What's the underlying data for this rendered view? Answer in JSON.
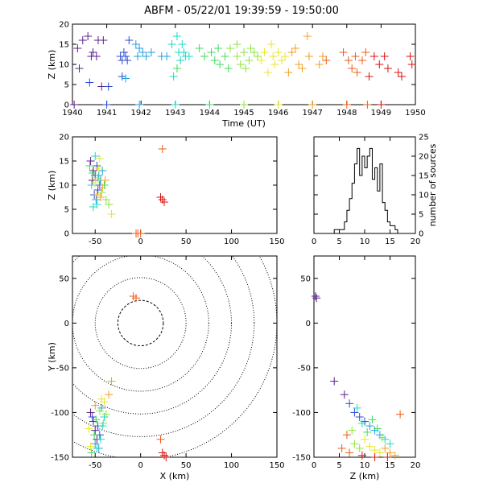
{
  "title": "ABFM - 05/22/01 19:39:59 - 19:50:00",
  "colors": {
    "rainbow": [
      "#5a1d8c",
      "#2a4bd0",
      "#1fa0e0",
      "#19d8c8",
      "#3cdc5a",
      "#8ce63c",
      "#e8e628",
      "#f0a020",
      "#f05a14",
      "#d81010"
    ],
    "axis": "#000000"
  },
  "chart_data": [
    {
      "id": "time_height",
      "type": "scatter",
      "marker": "+",
      "xlabel": "Time (UT)",
      "ylabel": "Z (km)",
      "xlim": [
        1940,
        1950
      ],
      "ylim": [
        0,
        20
      ],
      "xticks": [
        "1940",
        "1941",
        "1942",
        "1943",
        "1944",
        "1945",
        "1946",
        "1947",
        "1948",
        "1949",
        "1950"
      ],
      "yticks": [
        "0",
        "5",
        "10",
        "15",
        "20"
      ],
      "points": [
        [
          1940.05,
          0
        ],
        [
          1940.15,
          14
        ],
        [
          1940.2,
          9
        ],
        [
          1940.3,
          16
        ],
        [
          1940.45,
          17
        ],
        [
          1940.55,
          12
        ],
        [
          1940.6,
          13
        ],
        [
          1940.7,
          12
        ],
        [
          1940.75,
          16
        ],
        [
          1940.9,
          16
        ],
        [
          1940.85,
          4.5
        ],
        [
          1941.0,
          0
        ],
        [
          1941.05,
          4.5
        ],
        [
          1940.5,
          5.5
        ],
        [
          1941.4,
          12
        ],
        [
          1941.45,
          11
        ],
        [
          1941.5,
          13
        ],
        [
          1941.55,
          12
        ],
        [
          1941.6,
          11
        ],
        [
          1941.65,
          16
        ],
        [
          1941.45,
          7
        ],
        [
          1941.55,
          6.5
        ],
        [
          1941.95,
          0
        ],
        [
          1941.85,
          15
        ],
        [
          1941.9,
          12
        ],
        [
          1941.95,
          14
        ],
        [
          1942.05,
          13
        ],
        [
          1942.15,
          12
        ],
        [
          1942.3,
          13
        ],
        [
          1942.6,
          12
        ],
        [
          1942.75,
          12
        ],
        [
          1942.9,
          15
        ],
        [
          1942.95,
          7
        ],
        [
          1943.0,
          0
        ],
        [
          1943.05,
          17
        ],
        [
          1943.1,
          13
        ],
        [
          1943.15,
          11
        ],
        [
          1943.2,
          15
        ],
        [
          1943.25,
          13
        ],
        [
          1943.3,
          12
        ],
        [
          1943.4,
          12
        ],
        [
          1943.05,
          9
        ],
        [
          1943.7,
          14
        ],
        [
          1943.85,
          12
        ],
        [
          1944.0,
          0
        ],
        [
          1944.05,
          13
        ],
        [
          1944.15,
          11
        ],
        [
          1944.25,
          14
        ],
        [
          1944.3,
          10
        ],
        [
          1944.45,
          12
        ],
        [
          1944.55,
          9
        ],
        [
          1944.6,
          14
        ],
        [
          1944.8,
          15
        ],
        [
          1944.8,
          12
        ],
        [
          1944.9,
          10
        ],
        [
          1945.0,
          0
        ],
        [
          1945.0,
          13
        ],
        [
          1945.05,
          9
        ],
        [
          1945.15,
          11
        ],
        [
          1945.2,
          14
        ],
        [
          1945.3,
          13
        ],
        [
          1945.4,
          12
        ],
        [
          1945.5,
          11
        ],
        [
          1945.6,
          13
        ],
        [
          1945.7,
          8
        ],
        [
          1945.8,
          15
        ],
        [
          1945.85,
          12
        ],
        [
          1945.9,
          10
        ],
        [
          1946.0,
          0
        ],
        [
          1946.0,
          13
        ],
        [
          1946.1,
          11
        ],
        [
          1946.2,
          12
        ],
        [
          1946.3,
          8
        ],
        [
          1946.4,
          13
        ],
        [
          1946.5,
          14
        ],
        [
          1946.6,
          10
        ],
        [
          1946.7,
          9
        ],
        [
          1946.85,
          17
        ],
        [
          1946.9,
          12
        ],
        [
          1947.0,
          0
        ],
        [
          1947.2,
          10
        ],
        [
          1947.3,
          12
        ],
        [
          1947.4,
          11
        ],
        [
          1947.9,
          13
        ],
        [
          1948.0,
          0
        ],
        [
          1948.05,
          11
        ],
        [
          1948.15,
          9
        ],
        [
          1948.25,
          12
        ],
        [
          1948.3,
          8
        ],
        [
          1948.45,
          11
        ],
        [
          1948.55,
          13
        ],
        [
          1948.6,
          0
        ],
        [
          1948.65,
          7
        ],
        [
          1948.8,
          12
        ],
        [
          1948.95,
          10
        ],
        [
          1949.0,
          0
        ],
        [
          1949.1,
          12
        ],
        [
          1949.2,
          9
        ],
        [
          1949.5,
          8
        ],
        [
          1949.6,
          7
        ],
        [
          1949.85,
          12
        ],
        [
          1949.9,
          10
        ]
      ]
    },
    {
      "id": "x_height",
      "type": "scatter",
      "marker": "+",
      "xlabel": "",
      "ylabel": "Z (km)",
      "xlim": [
        -75,
        150
      ],
      "ylim": [
        0,
        20
      ],
      "xticks": [
        "-50",
        "0",
        "50",
        "100",
        "150"
      ],
      "yticks": [
        "0",
        "5",
        "10",
        "15",
        "20"
      ],
      "points": [
        [
          -55,
          15
        ],
        [
          -52,
          13
        ],
        [
          -50,
          12
        ],
        [
          -53,
          11
        ],
        [
          -48,
          14
        ],
        [
          -45,
          10
        ],
        [
          -47,
          9
        ],
        [
          -51,
          8
        ],
        [
          -49,
          7
        ],
        [
          -44,
          11
        ],
        [
          -42,
          13
        ],
        [
          -46,
          12
        ],
        [
          -54,
          10
        ],
        [
          -50,
          16
        ],
        [
          -48,
          6
        ],
        [
          -52,
          5.5
        ],
        [
          -40,
          10
        ],
        [
          -56,
          14
        ],
        [
          -53,
          12.5
        ],
        [
          -47,
          11.5
        ],
        [
          -43,
          8.5
        ],
        [
          -38,
          7
        ],
        [
          -35,
          6
        ],
        [
          -32,
          4
        ],
        [
          -45,
          15.5
        ],
        [
          -50,
          10.5
        ],
        [
          -46,
          13.5
        ],
        [
          -42,
          9.5
        ],
        [
          -39,
          11
        ],
        [
          -48,
          8
        ],
        [
          -44,
          7.5
        ],
        [
          -5,
          0
        ],
        [
          -3,
          0
        ],
        [
          0,
          0
        ],
        [
          24,
          17.5
        ],
        [
          22,
          7.5
        ],
        [
          24,
          7
        ],
        [
          26,
          6.5
        ]
      ]
    },
    {
      "id": "altitude_histogram",
      "type": "bar",
      "xlabel": "",
      "ylabel": "number of sources",
      "xlim": [
        0,
        20
      ],
      "ylim": [
        0,
        25
      ],
      "xticks": [
        "0",
        "5",
        "10",
        "15",
        "20"
      ],
      "yticks": [
        "0",
        "5",
        "10",
        "15",
        "20",
        "25"
      ],
      "bins": [
        [
          4,
          1
        ],
        [
          5,
          1
        ],
        [
          6,
          3
        ],
        [
          6.5,
          6
        ],
        [
          7,
          9
        ],
        [
          7.5,
          13
        ],
        [
          8,
          18
        ],
        [
          8.5,
          22
        ],
        [
          9,
          15
        ],
        [
          9.5,
          20
        ],
        [
          10,
          17
        ],
        [
          10.5,
          20
        ],
        [
          11,
          22
        ],
        [
          11.5,
          14
        ],
        [
          12,
          17
        ],
        [
          12.5,
          11
        ],
        [
          13,
          18
        ],
        [
          13.5,
          8
        ],
        [
          14,
          6
        ],
        [
          14.5,
          3
        ],
        [
          15,
          2
        ],
        [
          16,
          1
        ]
      ]
    },
    {
      "id": "plan_view",
      "type": "scatter",
      "marker": "+",
      "xlabel": "X (km)",
      "ylabel": "Y (km)",
      "xlim": [
        -75,
        150
      ],
      "ylim": [
        -150,
        75
      ],
      "xticks": [
        "-50",
        "0",
        "50",
        "100",
        "150"
      ],
      "yticks": [
        "-150",
        "-100",
        "-50",
        "0",
        "50"
      ],
      "range_rings_km": [
        25,
        50,
        75,
        100,
        125,
        150
      ],
      "points": [
        [
          -55,
          -100
        ],
        [
          -52,
          -110
        ],
        [
          -50,
          -120
        ],
        [
          -48,
          -130
        ],
        [
          -45,
          -125
        ],
        [
          -47,
          -115
        ],
        [
          -53,
          -105
        ],
        [
          -50,
          -135
        ],
        [
          -46,
          -140
        ],
        [
          -43,
          -95
        ],
        [
          -40,
          -105
        ],
        [
          -42,
          -115
        ],
        [
          -44,
          -130
        ],
        [
          -48,
          -140
        ],
        [
          -54,
          -145
        ],
        [
          -51,
          -125
        ],
        [
          -49,
          -108
        ],
        [
          -45,
          -98
        ],
        [
          -41,
          -112
        ],
        [
          -38,
          -102
        ],
        [
          -55,
          -138
        ],
        [
          -57,
          -118
        ],
        [
          -43,
          -85
        ],
        [
          -40,
          -88
        ],
        [
          -35,
          -80
        ],
        [
          -32,
          -65
        ],
        [
          -50,
          -92
        ],
        [
          -8,
          30
        ],
        [
          -5,
          28
        ],
        [
          22,
          -130
        ],
        [
          24,
          -145
        ],
        [
          26,
          -148
        ],
        [
          28,
          -150
        ]
      ]
    },
    {
      "id": "z_y",
      "type": "scatter",
      "marker": "+",
      "xlabel": "Z (km)",
      "ylabel": "",
      "xlim": [
        0,
        20
      ],
      "ylim": [
        -150,
        75
      ],
      "xticks": [
        "0",
        "5",
        "10",
        "15",
        "20"
      ],
      "yticks": [
        "-150",
        "-100",
        "-50",
        "0",
        "50"
      ],
      "points": [
        [
          0.3,
          30
        ],
        [
          0.5,
          28
        ],
        [
          4,
          -65
        ],
        [
          6,
          -80
        ],
        [
          7,
          -90
        ],
        [
          8,
          -100
        ],
        [
          9,
          -105
        ],
        [
          10,
          -110
        ],
        [
          11,
          -115
        ],
        [
          12,
          -120
        ],
        [
          13,
          -125
        ],
        [
          14,
          -130
        ],
        [
          15,
          -135
        ],
        [
          8.5,
          -95
        ],
        [
          9.5,
          -112
        ],
        [
          10.5,
          -122
        ],
        [
          11.5,
          -108
        ],
        [
          12.5,
          -118
        ],
        [
          13.5,
          -128
        ],
        [
          7.5,
          -120
        ],
        [
          8,
          -135
        ],
        [
          9,
          -140
        ],
        [
          10,
          -130
        ],
        [
          11,
          -138
        ],
        [
          12,
          -142
        ],
        [
          13,
          -145
        ],
        [
          14,
          -140
        ],
        [
          15,
          -145
        ],
        [
          16,
          -148
        ],
        [
          17,
          -102
        ],
        [
          6.5,
          -125
        ],
        [
          5.5,
          -140
        ],
        [
          7,
          -145
        ],
        [
          9.5,
          -148
        ],
        [
          12,
          -150
        ],
        [
          14.5,
          -150
        ]
      ]
    }
  ]
}
